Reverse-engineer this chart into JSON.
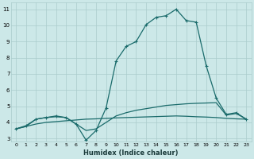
{
  "xlabel": "Humidex (Indice chaleur)",
  "bg_color": "#cce8e8",
  "grid_color": "#aacccc",
  "line_color": "#1a6b6b",
  "xlim": [
    -0.5,
    23.5
  ],
  "ylim": [
    2.8,
    11.4
  ],
  "xticks": [
    0,
    1,
    2,
    3,
    4,
    5,
    6,
    7,
    8,
    9,
    10,
    11,
    12,
    13,
    14,
    15,
    16,
    17,
    18,
    19,
    20,
    21,
    22,
    23
  ],
  "yticks": [
    3,
    4,
    5,
    6,
    7,
    8,
    9,
    10,
    11
  ],
  "series": [
    {
      "x": [
        0,
        1,
        2,
        3,
        4,
        5,
        6,
        7,
        8,
        9,
        10,
        11,
        12,
        13,
        14,
        15,
        16,
        17,
        18,
        19,
        20,
        21,
        22,
        23
      ],
      "y": [
        3.6,
        3.75,
        3.9,
        4.0,
        4.05,
        4.1,
        4.15,
        4.2,
        4.22,
        4.25,
        4.28,
        4.3,
        4.32,
        4.34,
        4.36,
        4.38,
        4.4,
        4.38,
        4.35,
        4.33,
        4.3,
        4.25,
        4.22,
        4.2
      ],
      "marker": false,
      "lw": 0.9
    },
    {
      "x": [
        0,
        1,
        2,
        3,
        4,
        5,
        6,
        7,
        8,
        9,
        10,
        11,
        12,
        13,
        14,
        15,
        16,
        17,
        18,
        19,
        20,
        21,
        22,
        23
      ],
      "y": [
        3.6,
        3.75,
        4.2,
        4.3,
        4.35,
        4.3,
        3.9,
        3.5,
        3.6,
        4.0,
        4.4,
        4.6,
        4.75,
        4.85,
        4.95,
        5.05,
        5.1,
        5.15,
        5.18,
        5.2,
        5.22,
        4.45,
        4.55,
        4.2
      ],
      "marker": false,
      "lw": 0.9
    },
    {
      "x": [
        0,
        1,
        2,
        3,
        4,
        5,
        6,
        7,
        8,
        9,
        10,
        11,
        12,
        13,
        14,
        15,
        16,
        17,
        18,
        19,
        20,
        21,
        22,
        23
      ],
      "y": [
        3.6,
        3.8,
        4.2,
        4.3,
        4.4,
        4.3,
        3.9,
        2.9,
        3.5,
        4.9,
        7.8,
        8.7,
        9.0,
        10.05,
        10.5,
        10.6,
        11.0,
        10.3,
        10.2,
        7.5,
        5.5,
        4.5,
        4.6,
        4.2
      ],
      "marker": true,
      "lw": 0.9
    }
  ]
}
